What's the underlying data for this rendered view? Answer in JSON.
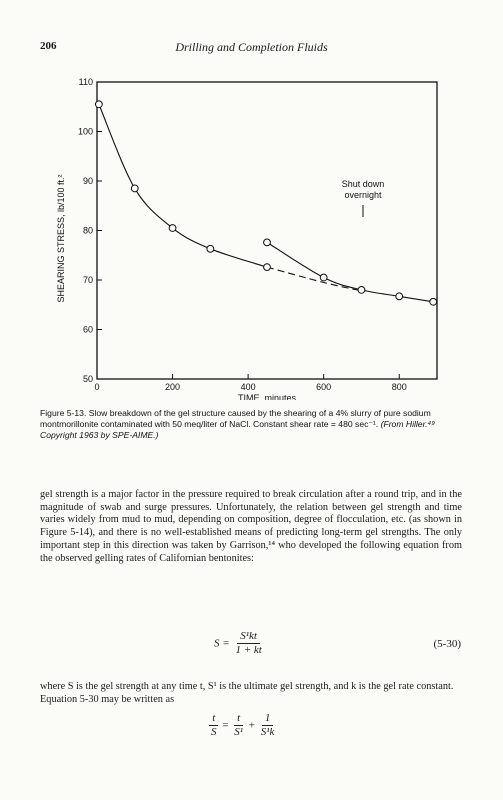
{
  "header": {
    "page_number": "206",
    "running_title": "Drilling and Completion Fluids"
  },
  "chart_data": {
    "type": "line",
    "xlabel": "TIME, minutes",
    "ylabel": "SHEARING STRESS, lb/100 ft.²",
    "xlim": [
      0,
      900
    ],
    "ylim": [
      50,
      110
    ],
    "x_ticks": [
      "0",
      "200",
      "400",
      "600",
      "800"
    ],
    "y_ticks": [
      "50",
      "60",
      "70",
      "80",
      "90",
      "100",
      "110"
    ],
    "series": [
      {
        "line": "solid",
        "points": [
          [
            5,
            105.5
          ],
          [
            100,
            88.5
          ],
          [
            200,
            80.5
          ],
          [
            300,
            76.3
          ],
          [
            450,
            72.6
          ]
        ]
      },
      {
        "line": "dashed",
        "points": [
          [
            450,
            72.6
          ],
          [
            600,
            69.5
          ],
          [
            700,
            67.8
          ]
        ]
      },
      {
        "line": "solid",
        "points": [
          [
            450,
            77.6
          ],
          [
            600,
            70.5
          ],
          [
            700,
            68.0
          ],
          [
            800,
            66.7
          ],
          [
            890,
            65.6
          ]
        ]
      }
    ],
    "annotation": {
      "text_lines": [
        "Shut down",
        "overnight"
      ]
    }
  },
  "caption": {
    "main": "Figure 5-13. Slow breakdown of the gel structure caused by the shearing of a 4% slurry of pure sodium montmorillonite contaminated with 50 meq/liter of NaCl. Constant shear rate = 480 sec⁻¹. ",
    "source": "(From Hiller.⁴⁹ Copyright 1963 by SPE-AIME.)"
  },
  "body": {
    "paragraph": "gel strength is a major factor in the pressure required to break circulation after a round trip, and in the magnitude of swab and surge pressures. Unfortunately, the relation between gel strength and time varies widely from mud to mud, depending on composition, degree of flocculation, etc. (as shown in Figure 5-14), and there is no well-established means of predicting long-term gel strengths. The only important step in this direction was taken by Garrison,¹⁴ who developed the following equation from the observed gelling rates of Californian bentonites:",
    "eq1": {
      "lhs": "S =",
      "num": "S¹kt",
      "den": "1 + kt",
      "number": "(5-30)"
    },
    "after": "where S is the gel strength at any time t, S¹ is the ultimate gel strength, and k is the gel rate constant. Equation 5-30 may be written as",
    "eq2": {
      "a_num": "t",
      "a_den": "S",
      "eq": "=",
      "b_num": "t",
      "b_den": "S¹",
      "plus": "+",
      "c_num": "1",
      "c_den": "S¹k"
    }
  }
}
